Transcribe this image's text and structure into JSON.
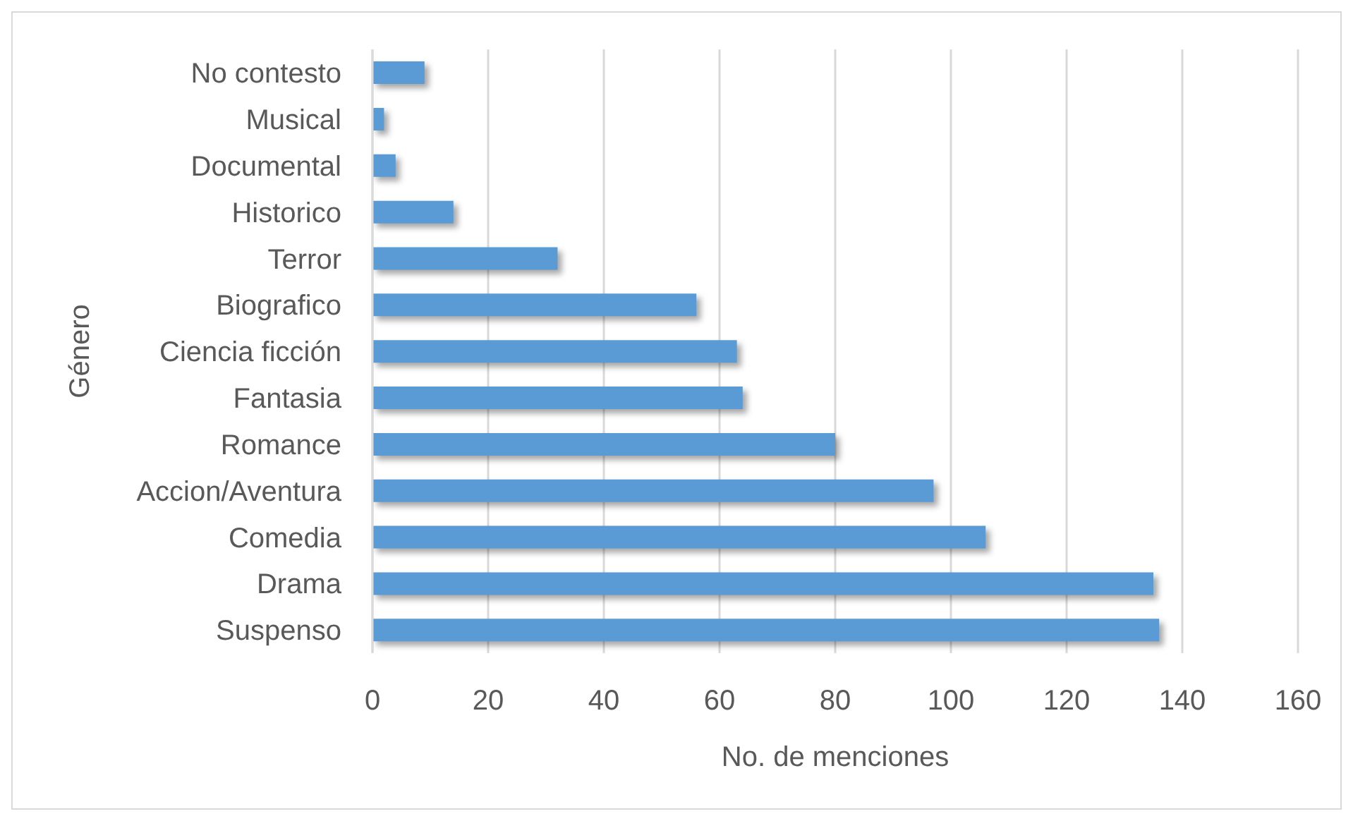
{
  "chart_data": {
    "type": "bar",
    "orientation": "horizontal",
    "xlabel": "No. de menciones",
    "ylabel": "Género",
    "categories": [
      "No contesto",
      "Musical",
      "Documental",
      "Historico",
      "Terror",
      "Biografico",
      "Ciencia ficción",
      "Fantasia",
      "Romance",
      "Accion/Aventura",
      "Comedia",
      "Drama",
      "Suspenso"
    ],
    "values": [
      9,
      2,
      4,
      14,
      32,
      56,
      63,
      64,
      80,
      97,
      106,
      135,
      136
    ],
    "color": "#5b9bd5",
    "xlim": [
      0,
      160
    ],
    "xticks": [
      0,
      20,
      40,
      60,
      80,
      100,
      120,
      140,
      160
    ],
    "grid": "x"
  }
}
